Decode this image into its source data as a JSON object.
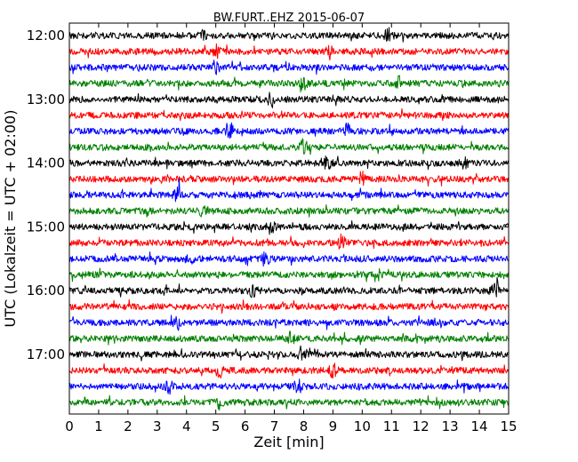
{
  "chart_data": {
    "type": "line",
    "title": "BW.FURT..EHZ 2015-06-07",
    "xlabel": "Zeit  [min]",
    "ylabel": "UTC (Lokalzeit = UTC + 02:00)",
    "xlim": [
      0,
      15
    ],
    "x_ticks": [
      "0",
      "1",
      "2",
      "3",
      "4",
      "5",
      "6",
      "7",
      "8",
      "9",
      "10",
      "11",
      "12",
      "13",
      "14",
      "15"
    ],
    "y_ticks": [
      "12:00",
      "13:00",
      "14:00",
      "15:00",
      "16:00",
      "17:00"
    ],
    "trace_interval_min": 15,
    "trace_labels": [
      "12:00",
      "12:15",
      "12:30",
      "12:45",
      "13:00",
      "13:15",
      "13:30",
      "13:45",
      "14:00",
      "14:15",
      "14:30",
      "14:45",
      "15:00",
      "15:15",
      "15:30",
      "15:45",
      "16:00",
      "16:15",
      "16:30",
      "16:45",
      "17:00",
      "17:15",
      "17:30",
      "17:45"
    ],
    "trace_colors": [
      "#000000",
      "#ff0000",
      "#0000ff",
      "#008000"
    ],
    "events": [
      [
        4.6,
        10.9
      ],
      [
        5.0,
        8.9
      ],
      [
        5.0
      ],
      [
        8.0,
        11.3
      ],
      [
        6.9
      ],
      [],
      [
        5.5,
        9.5
      ],
      [
        8.0
      ],
      [
        8.8,
        13.5
      ],
      [
        10.0
      ],
      [
        3.7
      ],
      [
        4.6
      ],
      [
        6.9
      ],
      [
        9.3
      ],
      [
        4.1,
        6.7
      ],
      [],
      [
        6.3,
        14.5
      ],
      [],
      [
        3.7
      ],
      [
        7.6
      ],
      [
        7.9
      ],
      [
        5.1,
        9.0
      ],
      [
        3.4,
        7.8
      ],
      [
        5.1
      ]
    ],
    "grid": false,
    "legend": "none"
  }
}
